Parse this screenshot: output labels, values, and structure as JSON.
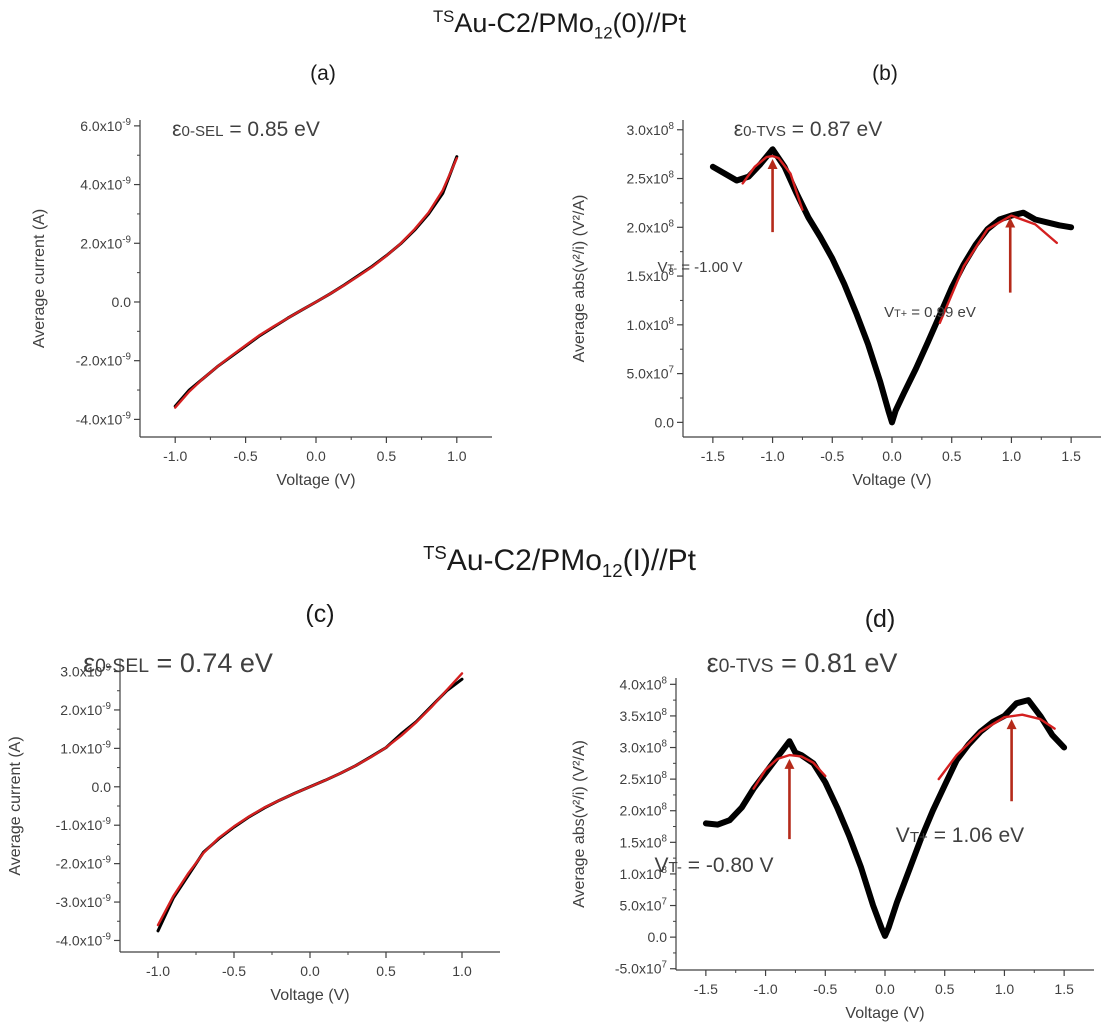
{
  "titles": {
    "top": {
      "sup": "TS",
      "main": "Au-C2/PMo",
      "sub": "12",
      "tail": "(0)//Pt"
    },
    "bottom": {
      "sup": "TS",
      "main": "Au-C2/PMo",
      "sub": "12",
      "tail": "(I)//Pt"
    }
  },
  "colors": {
    "data": "#000000",
    "fit": "#d42020",
    "arrow": "#b52a1a",
    "axis": "#404040"
  },
  "chart_data": [
    {
      "id": "a",
      "panel_label": "(a)",
      "type": "line",
      "xlabel": "Voltage (V)",
      "ylabel": "Average current (A)",
      "xlim": [
        -1.25,
        1.25
      ],
      "ylim": [
        -4.6e-09,
        6.2e-09
      ],
      "xticks": [
        -1.0,
        -0.5,
        0.0,
        0.5,
        1.0
      ],
      "xtick_labels": [
        "-1.0",
        "-0.5",
        "0.0",
        "0.5",
        "1.0"
      ],
      "yticks": [
        -4e-09,
        -2e-09,
        0,
        2e-09,
        4e-09,
        6e-09
      ],
      "ytick_labels": [
        {
          "m": "-4.0x10",
          "e": "-9"
        },
        {
          "m": "-2.0x10",
          "e": "-9"
        },
        {
          "m": "0.0",
          "e": ""
        },
        {
          "m": "2.0x10",
          "e": "-9"
        },
        {
          "m": "4.0x10",
          "e": "-9"
        },
        {
          "m": "6.0x10",
          "e": "-9"
        }
      ],
      "annotations": [
        {
          "sym": "ε",
          "sub": "0-SEL",
          "text": " = 0.85 eV"
        }
      ],
      "series": [
        {
          "role": "data",
          "x": [
            -1.0,
            -0.9,
            -0.8,
            -0.7,
            -0.6,
            -0.5,
            -0.4,
            -0.3,
            -0.2,
            -0.1,
            0.0,
            0.1,
            0.2,
            0.3,
            0.4,
            0.5,
            0.6,
            0.7,
            0.8,
            0.9,
            1.0
          ],
          "y": [
            -3.55e-09,
            -3e-09,
            -2.6e-09,
            -2.2e-09,
            -1.85e-09,
            -1.5e-09,
            -1.15e-09,
            -8.5e-10,
            -5.5e-10,
            -2.7e-10,
            0.0,
            2.8e-10,
            5.8e-10,
            9e-10,
            1.22e-09,
            1.58e-09,
            1.98e-09,
            2.45e-09,
            3e-09,
            3.7e-09,
            4.95e-09
          ]
        },
        {
          "role": "fit",
          "x": [
            -1.0,
            -0.9,
            -0.8,
            -0.7,
            -0.6,
            -0.5,
            -0.4,
            -0.3,
            -0.2,
            -0.1,
            0.0,
            0.1,
            0.2,
            0.3,
            0.4,
            0.5,
            0.6,
            0.7,
            0.8,
            0.9,
            1.0
          ],
          "y": [
            -3.6e-09,
            -3.05e-09,
            -2.6e-09,
            -2.2e-09,
            -1.83e-09,
            -1.48e-09,
            -1.13e-09,
            -8.3e-10,
            -5.5e-10,
            -2.7e-10,
            0.0,
            2.8e-10,
            5.7e-10,
            8.8e-10,
            1.2e-09,
            1.57e-09,
            1.99e-09,
            2.48e-09,
            3.05e-09,
            3.8e-09,
            4.9e-09
          ]
        }
      ],
      "arrows": []
    },
    {
      "id": "b",
      "panel_label": "(b)",
      "type": "line",
      "xlabel": "Voltage (V)",
      "ylabel": "Average abs(v²/i) (V²/A)",
      "xlim": [
        -1.75,
        1.75
      ],
      "ylim": [
        -15000000.0,
        310000000.0
      ],
      "xticks": [
        -1.5,
        -1.0,
        -0.5,
        0.0,
        0.5,
        1.0,
        1.5
      ],
      "xtick_labels": [
        "-1.5",
        "-1.0",
        "-0.5",
        "0.0",
        "0.5",
        "1.0",
        "1.5"
      ],
      "yticks": [
        0,
        50000000.0,
        100000000.0,
        150000000.0,
        200000000.0,
        250000000.0,
        300000000.0
      ],
      "ytick_labels": [
        {
          "m": "0.0",
          "e": ""
        },
        {
          "m": "5.0x10",
          "e": "7"
        },
        {
          "m": "1.0x10",
          "e": "8"
        },
        {
          "m": "1.5x10",
          "e": "8"
        },
        {
          "m": "2.0x10",
          "e": "8"
        },
        {
          "m": "2.5x10",
          "e": "8"
        },
        {
          "m": "3.0x10",
          "e": "8"
        }
      ],
      "annotations": [
        {
          "sym": "ε",
          "sub": "0-TVS",
          "text": " = 0.87 eV"
        },
        {
          "sym": "V",
          "sub": "T-",
          "text": " = -1.00 V"
        },
        {
          "sym": "V",
          "sub": "T+",
          "text": " = 0.99 eV"
        }
      ],
      "series": [
        {
          "role": "data",
          "x": [
            -1.5,
            -1.4,
            -1.3,
            -1.2,
            -1.1,
            -1.0,
            -0.9,
            -0.8,
            -0.7,
            -0.6,
            -0.5,
            -0.4,
            -0.3,
            -0.2,
            -0.1,
            -0.03,
            0.0,
            0.03,
            0.1,
            0.2,
            0.3,
            0.4,
            0.5,
            0.6,
            0.7,
            0.8,
            0.9,
            1.0,
            1.1,
            1.2,
            1.3,
            1.4,
            1.5
          ],
          "y": [
            262000000.0,
            255000000.0,
            248000000.0,
            252000000.0,
            265000000.0,
            280000000.0,
            262000000.0,
            235000000.0,
            210000000.0,
            190000000.0,
            168000000.0,
            142000000.0,
            112000000.0,
            80000000.0,
            42000000.0,
            12000000.0,
            0.0,
            12000000.0,
            30000000.0,
            55000000.0,
            82000000.0,
            110000000.0,
            138000000.0,
            162000000.0,
            182000000.0,
            198000000.0,
            208000000.0,
            212000000.0,
            215000000.0,
            208000000.0,
            205000000.0,
            202000000.0,
            200000000.0
          ]
        },
        {
          "role": "fit",
          "x": [
            -1.25,
            -1.15,
            -1.05,
            -1.0,
            -0.95,
            -0.85,
            -0.75
          ],
          "y": [
            245000000.0,
            262000000.0,
            272000000.0,
            273000000.0,
            271000000.0,
            255000000.0,
            218000000.0
          ]
        },
        {
          "role": "fit",
          "x": [
            0.4,
            0.6,
            0.8,
            1.0,
            1.2,
            1.38
          ],
          "y": [
            102000000.0,
            160000000.0,
            198000000.0,
            212000000.0,
            203000000.0,
            184000000.0
          ]
        }
      ],
      "arrows": [
        {
          "x": -1.0,
          "y_from": 195000000.0,
          "y_to": 270000000.0
        },
        {
          "x": 0.99,
          "y_from": 133000000.0,
          "y_to": 210000000.0
        }
      ]
    },
    {
      "id": "c",
      "panel_label": "(c)",
      "type": "line",
      "xlabel": "Voltage (V)",
      "ylabel": "Average current (A)",
      "xlim": [
        -1.25,
        1.25
      ],
      "ylim": [
        -4.3e-09,
        3.3e-09
      ],
      "xticks": [
        -1.0,
        -0.5,
        0.0,
        0.5,
        1.0
      ],
      "xtick_labels": [
        "-1.0",
        "-0.5",
        "0.0",
        "0.5",
        "1.0"
      ],
      "yticks": [
        -4e-09,
        -3e-09,
        -2e-09,
        -1e-09,
        0,
        1e-09,
        2e-09,
        3e-09
      ],
      "ytick_labels": [
        {
          "m": "-4.0x10",
          "e": "-9"
        },
        {
          "m": "-3.0x10",
          "e": "-9"
        },
        {
          "m": "-2.0x10",
          "e": "-9"
        },
        {
          "m": "-1.0x10",
          "e": "-9"
        },
        {
          "m": "0.0",
          "e": ""
        },
        {
          "m": "1.0x10",
          "e": "-9"
        },
        {
          "m": "2.0x10",
          "e": "-9"
        },
        {
          "m": "3.0x10",
          "e": "-9"
        }
      ],
      "annotations": [
        {
          "sym": "ε",
          "sub": "0-SEL",
          "text": " = 0.74 eV"
        }
      ],
      "series": [
        {
          "role": "data",
          "x": [
            -1.0,
            -0.9,
            -0.8,
            -0.7,
            -0.6,
            -0.5,
            -0.4,
            -0.3,
            -0.2,
            -0.1,
            0.0,
            0.1,
            0.2,
            0.3,
            0.4,
            0.5,
            0.6,
            0.7,
            0.8,
            0.9,
            1.0
          ],
          "y": [
            -3.75e-09,
            -2.9e-09,
            -2.3e-09,
            -1.7e-09,
            -1.35e-09,
            -1.05e-09,
            -7.8e-10,
            -5.5e-10,
            -3.5e-10,
            -1.7e-10,
            0.0,
            1.7e-10,
            3.5e-10,
            5.5e-10,
            7.8e-10,
            1.02e-09,
            1.38e-09,
            1.7e-09,
            2.1e-09,
            2.5e-09,
            2.8e-09
          ]
        },
        {
          "role": "fit",
          "x": [
            -1.0,
            -0.9,
            -0.8,
            -0.7,
            -0.6,
            -0.5,
            -0.4,
            -0.3,
            -0.2,
            -0.1,
            0.0,
            0.1,
            0.2,
            0.3,
            0.4,
            0.5,
            0.6,
            0.7,
            0.8,
            0.9,
            1.0
          ],
          "y": [
            -3.6e-09,
            -2.85e-09,
            -2.25e-09,
            -1.72e-09,
            -1.33e-09,
            -1.03e-09,
            -7.7e-10,
            -5.4e-10,
            -3.5e-10,
            -1.7e-10,
            0.0,
            1.7e-10,
            3.5e-10,
            5.5e-10,
            7.7e-10,
            1.02e-09,
            1.33e-09,
            1.68e-09,
            2.08e-09,
            2.52e-09,
            2.95e-09
          ]
        }
      ],
      "arrows": []
    },
    {
      "id": "d",
      "panel_label": "(d)",
      "type": "line",
      "xlabel": "Voltage (V)",
      "ylabel": "Average abs(v²/i) (V²/A)",
      "xlim": [
        -1.75,
        1.75
      ],
      "ylim": [
        -52000000.0,
        410000000.0
      ],
      "xticks": [
        -1.5,
        -1.0,
        -0.5,
        0.0,
        0.5,
        1.0,
        1.5
      ],
      "xtick_labels": [
        "-1.5",
        "-1.0",
        "-0.5",
        "0.0",
        "0.5",
        "1.0",
        "1.5"
      ],
      "yticks": [
        -50000000.0,
        0,
        50000000.0,
        100000000.0,
        150000000.0,
        200000000.0,
        250000000.0,
        300000000.0,
        350000000.0,
        400000000.0
      ],
      "ytick_labels": [
        {
          "m": "-5.0x10",
          "e": "7"
        },
        {
          "m": "0.0",
          "e": ""
        },
        {
          "m": "5.0x10",
          "e": "7"
        },
        {
          "m": "1.0x10",
          "e": "8"
        },
        {
          "m": "1.5x10",
          "e": "8"
        },
        {
          "m": "2.0x10",
          "e": "8"
        },
        {
          "m": "2.5x10",
          "e": "8"
        },
        {
          "m": "3.0x10",
          "e": "8"
        },
        {
          "m": "3.5x10",
          "e": "8"
        },
        {
          "m": "4.0x10",
          "e": "8"
        }
      ],
      "annotations": [
        {
          "sym": "ε",
          "sub": "0-TVS",
          "text": " = 0.81 eV"
        },
        {
          "sym": "V",
          "sub": "T-",
          "text": " = -0.80 V"
        },
        {
          "sym": "V",
          "sub": "T+",
          "text": " = 1.06 eV"
        }
      ],
      "series": [
        {
          "role": "data",
          "x": [
            -1.5,
            -1.4,
            -1.3,
            -1.2,
            -1.1,
            -1.0,
            -0.9,
            -0.8,
            -0.75,
            -0.7,
            -0.6,
            -0.5,
            -0.4,
            -0.3,
            -0.2,
            -0.1,
            -0.03,
            0.0,
            0.03,
            0.1,
            0.2,
            0.3,
            0.4,
            0.5,
            0.6,
            0.7,
            0.8,
            0.9,
            1.0,
            1.1,
            1.2,
            1.3,
            1.4,
            1.5
          ],
          "y": [
            180000000.0,
            178000000.0,
            185000000.0,
            205000000.0,
            235000000.0,
            260000000.0,
            285000000.0,
            310000000.0,
            292000000.0,
            288000000.0,
            275000000.0,
            245000000.0,
            205000000.0,
            160000000.0,
            110000000.0,
            50000000.0,
            15000000.0,
            2000000.0,
            15000000.0,
            55000000.0,
            105000000.0,
            155000000.0,
            200000000.0,
            240000000.0,
            280000000.0,
            305000000.0,
            325000000.0,
            340000000.0,
            350000000.0,
            370000000.0,
            375000000.0,
            350000000.0,
            320000000.0,
            300000000.0
          ]
        },
        {
          "role": "fit",
          "x": [
            -1.1,
            -1.0,
            -0.9,
            -0.8,
            -0.7,
            -0.6,
            -0.5
          ],
          "y": [
            235000000.0,
            265000000.0,
            282000000.0,
            288000000.0,
            286000000.0,
            276000000.0,
            255000000.0
          ]
        },
        {
          "role": "fit",
          "x": [
            0.45,
            0.6,
            0.8,
            1.0,
            1.15,
            1.3,
            1.42
          ],
          "y": [
            250000000.0,
            288000000.0,
            325000000.0,
            348000000.0,
            352000000.0,
            345000000.0,
            330000000.0
          ]
        }
      ],
      "arrows": [
        {
          "x": -0.8,
          "y_from": 155000000.0,
          "y_to": 282000000.0
        },
        {
          "x": 1.06,
          "y_from": 215000000.0,
          "y_to": 345000000.0
        }
      ]
    }
  ]
}
